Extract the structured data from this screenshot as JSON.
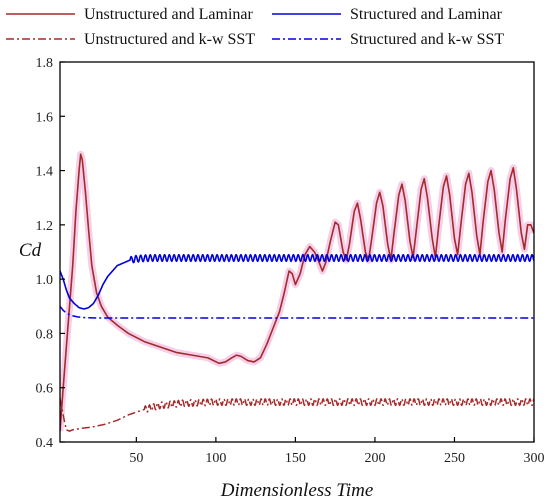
{
  "chart_data": {
    "type": "line",
    "xlabel": "Dimensionless Time",
    "ylabel": "Cd",
    "xlim": [
      2,
      300
    ],
    "ylim": [
      0.4,
      1.8
    ],
    "x_ticks": [
      50,
      100,
      150,
      200,
      250,
      300
    ],
    "y_ticks": [
      0.4,
      0.6,
      0.8,
      1.0,
      1.2,
      1.4,
      1.6,
      1.8
    ],
    "grid": false,
    "legend": {
      "position": "top",
      "columns": 2
    },
    "series": [
      {
        "name": "Unstructured and Laminar",
        "color": "#a52a2a",
        "dash": "solid",
        "envelope_color": "#f3c6e6",
        "points": [
          [
            2,
            0.44
          ],
          [
            4,
            0.6
          ],
          [
            6,
            0.75
          ],
          [
            8,
            0.9
          ],
          [
            10,
            1.05
          ],
          [
            12,
            1.25
          ],
          [
            14,
            1.4
          ],
          [
            15,
            1.46
          ],
          [
            16,
            1.44
          ],
          [
            18,
            1.32
          ],
          [
            20,
            1.18
          ],
          [
            22,
            1.05
          ],
          [
            25,
            0.95
          ],
          [
            28,
            0.9
          ],
          [
            32,
            0.86
          ],
          [
            38,
            0.83
          ],
          [
            45,
            0.8
          ],
          [
            55,
            0.77
          ],
          [
            65,
            0.75
          ],
          [
            75,
            0.73
          ],
          [
            85,
            0.72
          ],
          [
            95,
            0.71
          ],
          [
            102,
            0.69
          ],
          [
            106,
            0.695
          ],
          [
            110,
            0.71
          ],
          [
            113,
            0.72
          ],
          [
            116,
            0.715
          ],
          [
            120,
            0.7
          ],
          [
            124,
            0.695
          ],
          [
            128,
            0.71
          ],
          [
            132,
            0.76
          ],
          [
            136,
            0.82
          ],
          [
            140,
            0.88
          ],
          [
            143,
            0.95
          ],
          [
            146,
            1.03
          ],
          [
            148,
            1.02
          ],
          [
            150,
            0.98
          ],
          [
            153,
            1.02
          ],
          [
            156,
            1.09
          ],
          [
            159,
            1.12
          ],
          [
            162,
            1.1
          ],
          [
            165,
            1.06
          ],
          [
            167,
            1.03
          ],
          [
            169,
            1.06
          ],
          [
            172,
            1.14
          ],
          [
            175,
            1.21
          ],
          [
            177,
            1.2
          ],
          [
            180,
            1.1
          ],
          [
            182,
            1.07
          ],
          [
            184,
            1.13
          ],
          [
            187,
            1.25
          ],
          [
            189,
            1.28
          ],
          [
            191,
            1.22
          ],
          [
            194,
            1.1
          ],
          [
            196,
            1.07
          ],
          [
            198,
            1.15
          ],
          [
            201,
            1.28
          ],
          [
            203,
            1.32
          ],
          [
            205,
            1.27
          ],
          [
            208,
            1.13
          ],
          [
            210,
            1.07
          ],
          [
            212,
            1.17
          ],
          [
            215,
            1.31
          ],
          [
            217,
            1.35
          ],
          [
            219,
            1.29
          ],
          [
            222,
            1.14
          ],
          [
            224,
            1.08
          ],
          [
            226,
            1.18
          ],
          [
            229,
            1.33
          ],
          [
            231,
            1.37
          ],
          [
            233,
            1.3
          ],
          [
            236,
            1.15
          ],
          [
            238,
            1.08
          ],
          [
            240,
            1.19
          ],
          [
            243,
            1.34
          ],
          [
            245,
            1.38
          ],
          [
            247,
            1.31
          ],
          [
            250,
            1.15
          ],
          [
            252,
            1.09
          ],
          [
            254,
            1.2
          ],
          [
            257,
            1.35
          ],
          [
            259,
            1.39
          ],
          [
            261,
            1.32
          ],
          [
            264,
            1.16
          ],
          [
            266,
            1.09
          ],
          [
            268,
            1.21
          ],
          [
            271,
            1.36
          ],
          [
            273,
            1.4
          ],
          [
            275,
            1.33
          ],
          [
            278,
            1.17
          ],
          [
            280,
            1.1
          ],
          [
            282,
            1.22
          ],
          [
            285,
            1.37
          ],
          [
            287,
            1.41
          ],
          [
            289,
            1.33
          ],
          [
            292,
            1.17
          ],
          [
            294,
            1.11
          ],
          [
            296,
            1.2
          ],
          [
            298,
            1.2
          ],
          [
            300,
            1.17
          ]
        ]
      },
      {
        "name": "Structured and Laminar",
        "color": "#0000dd",
        "dash": "solid",
        "points": [
          [
            2,
            1.03
          ],
          [
            4,
            1.0
          ],
          [
            6,
            0.96
          ],
          [
            8,
            0.93
          ],
          [
            11,
            0.91
          ],
          [
            14,
            0.895
          ],
          [
            17,
            0.89
          ],
          [
            20,
            0.895
          ],
          [
            23,
            0.91
          ],
          [
            26,
            0.94
          ],
          [
            29,
            0.98
          ],
          [
            32,
            1.01
          ],
          [
            35,
            1.03
          ],
          [
            38,
            1.05
          ],
          [
            42,
            1.06
          ],
          [
            46,
            1.07
          ],
          [
            50,
            1.075
          ],
          [
            55,
            1.077
          ],
          [
            60,
            1.078
          ],
          [
            300,
            1.078
          ]
        ],
        "oscillation": {
          "from_x": 46,
          "amplitude": 0.012,
          "period": 3.0
        }
      },
      {
        "name": "Unstructured and k-w SST",
        "color": "#a52a2a",
        "dash": "dashdot",
        "points": [
          [
            2,
            0.56
          ],
          [
            3,
            0.53
          ],
          [
            4,
            0.5
          ],
          [
            5,
            0.47
          ],
          [
            6,
            0.445
          ],
          [
            8,
            0.44
          ],
          [
            10,
            0.445
          ],
          [
            15,
            0.45
          ],
          [
            22,
            0.455
          ],
          [
            30,
            0.465
          ],
          [
            38,
            0.48
          ],
          [
            45,
            0.5
          ],
          [
            55,
            0.52
          ],
          [
            65,
            0.535
          ],
          [
            80,
            0.543
          ],
          [
            100,
            0.547
          ],
          [
            150,
            0.547
          ],
          [
            300,
            0.547
          ]
        ],
        "oscillation": {
          "from_x": 55,
          "amplitude": 0.012,
          "period": 2.6
        }
      },
      {
        "name": "Structured and k-w SST",
        "color": "#0000dd",
        "dash": "dashdot",
        "points": [
          [
            2,
            0.9
          ],
          [
            4,
            0.885
          ],
          [
            6,
            0.875
          ],
          [
            9,
            0.866
          ],
          [
            13,
            0.861
          ],
          [
            18,
            0.858
          ],
          [
            25,
            0.857
          ],
          [
            300,
            0.857
          ]
        ]
      }
    ]
  }
}
